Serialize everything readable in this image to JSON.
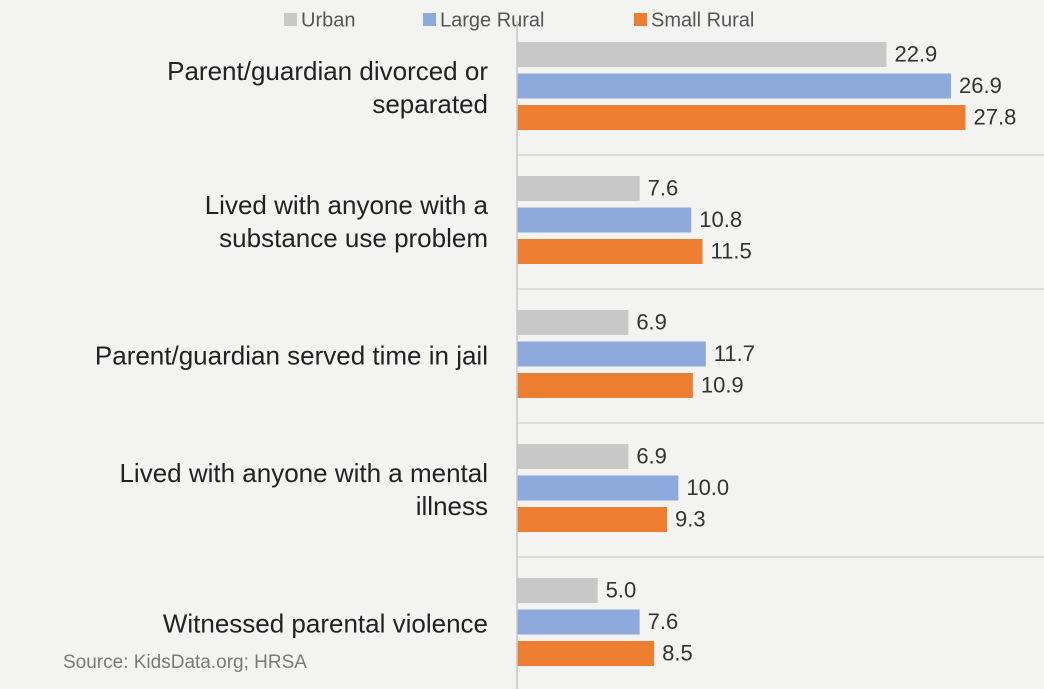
{
  "chart_data": {
    "type": "bar",
    "orientation": "horizontal",
    "categories": [
      "Parent/guardian divorced or separated",
      "Lived with anyone with a substance use problem",
      "Parent/guardian served time in jail",
      "Lived with anyone with a mental illness",
      "Witnessed parental violence"
    ],
    "series": [
      {
        "name": "Urban",
        "color": "#c8c8c8",
        "values": [
          22.9,
          7.6,
          6.9,
          6.9,
          5.0
        ],
        "value_labels": [
          "22.9",
          "7.6",
          "6.9",
          "6.9",
          "5.0"
        ]
      },
      {
        "name": "Large Rural",
        "color": "#8eaadc",
        "values": [
          26.9,
          10.8,
          11.7,
          10.0,
          7.6
        ],
        "value_labels": [
          "26.9",
          "10.8",
          "11.7",
          "10.0",
          "7.6"
        ]
      },
      {
        "name": "Small Rural",
        "color": "#ed7d31",
        "values": [
          27.8,
          11.5,
          10.9,
          9.3,
          8.5
        ],
        "value_labels": [
          "27.8",
          "11.5",
          "10.9",
          "9.3",
          "8.5"
        ]
      }
    ],
    "xlim": [
      0,
      30
    ],
    "legend": "top",
    "source": "Source:  KidsData.org; HRSA"
  }
}
